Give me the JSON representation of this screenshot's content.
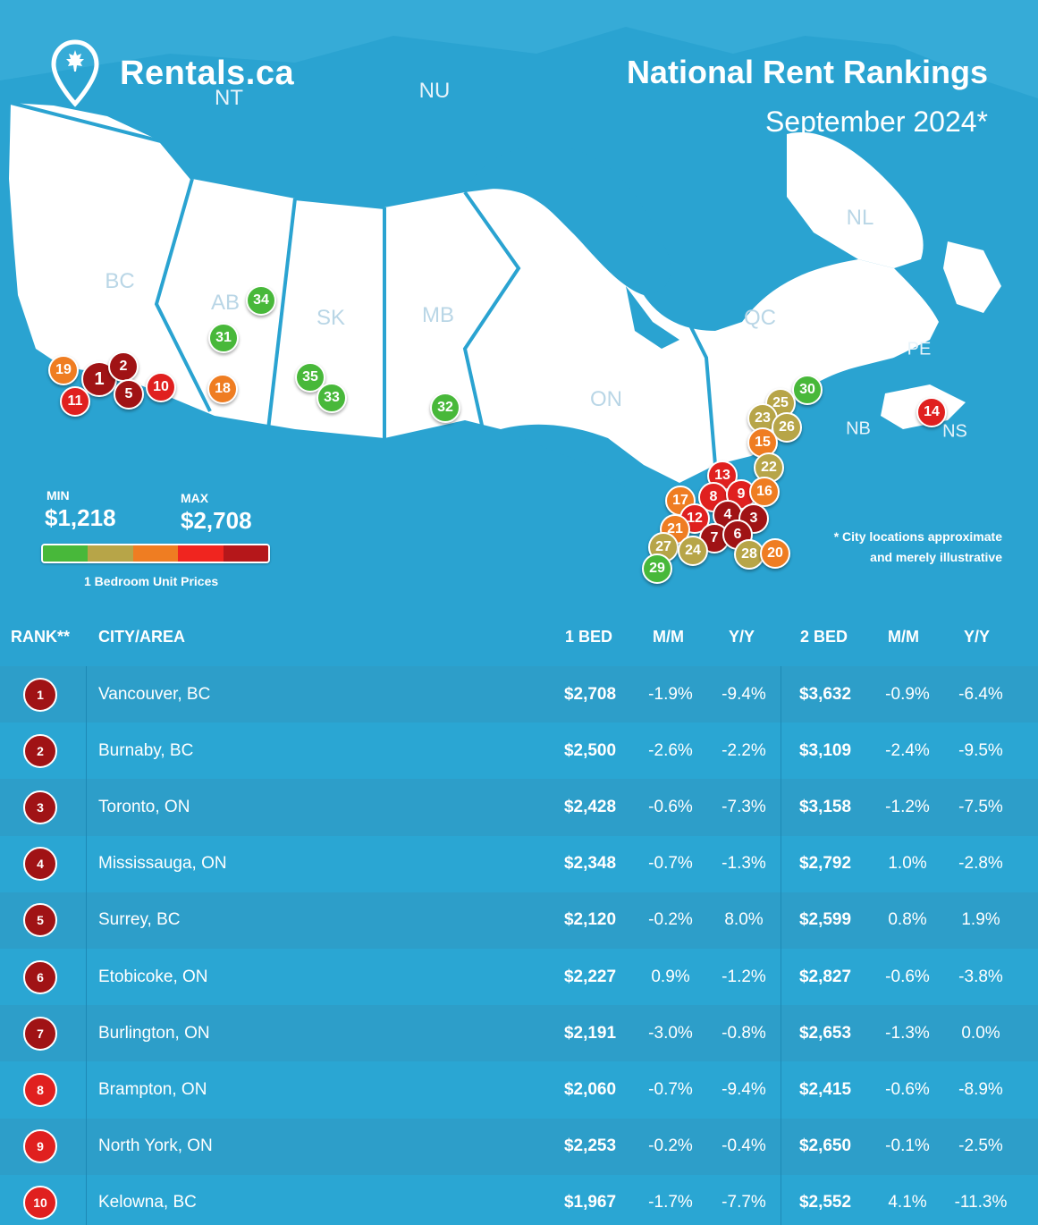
{
  "brand": {
    "name": "Rentals.ca"
  },
  "title": "National Rent Rankings",
  "subtitle": "September 2024*",
  "provinces": [
    "NT",
    "NU",
    "BC",
    "AB",
    "SK",
    "MB",
    "ON",
    "QC",
    "NL",
    "PE",
    "NB",
    "NS"
  ],
  "legend": {
    "min_label": "MIN",
    "min_value": "$1,218",
    "max_label": "MAX",
    "max_value": "$2,708",
    "caption": "1 Bedroom Unit Prices",
    "colors": [
      "#48b83a",
      "#b7a548",
      "#ef7d22",
      "#f0251f",
      "#b5171a"
    ]
  },
  "footnote": [
    "* City locations approximate",
    "and merely illustrative"
  ],
  "pins": [
    {
      "n": "1",
      "color": "#a01315",
      "big": true
    },
    {
      "n": "2",
      "color": "#a01315"
    },
    {
      "n": "5",
      "color": "#a01315"
    },
    {
      "n": "10",
      "color": "#e0201f"
    },
    {
      "n": "11",
      "color": "#e0201f"
    },
    {
      "n": "19",
      "color": "#ef7d22"
    },
    {
      "n": "34",
      "color": "#48b83a"
    },
    {
      "n": "31",
      "color": "#48b83a"
    },
    {
      "n": "18",
      "color": "#ef7d22"
    },
    {
      "n": "35",
      "color": "#48b83a"
    },
    {
      "n": "33",
      "color": "#48b83a"
    },
    {
      "n": "32",
      "color": "#48b83a"
    },
    {
      "n": "30",
      "color": "#48b83a"
    },
    {
      "n": "25",
      "color": "#b7a548"
    },
    {
      "n": "23",
      "color": "#b7a548"
    },
    {
      "n": "26",
      "color": "#b7a548"
    },
    {
      "n": "15",
      "color": "#ef7d22"
    },
    {
      "n": "22",
      "color": "#b7a548"
    },
    {
      "n": "14",
      "color": "#e0201f"
    },
    {
      "n": "13",
      "color": "#e0201f"
    },
    {
      "n": "17",
      "color": "#ef7d22"
    },
    {
      "n": "8",
      "color": "#e0201f"
    },
    {
      "n": "9",
      "color": "#e0201f"
    },
    {
      "n": "16",
      "color": "#ef7d22"
    },
    {
      "n": "12",
      "color": "#e0201f"
    },
    {
      "n": "4",
      "color": "#a01315"
    },
    {
      "n": "3",
      "color": "#a01315"
    },
    {
      "n": "21",
      "color": "#ef7d22"
    },
    {
      "n": "7",
      "color": "#a01315"
    },
    {
      "n": "6",
      "color": "#a01315"
    },
    {
      "n": "27",
      "color": "#b7a548"
    },
    {
      "n": "24",
      "color": "#b7a548"
    },
    {
      "n": "28",
      "color": "#b7a548"
    },
    {
      "n": "20",
      "color": "#ef7d22"
    },
    {
      "n": "29",
      "color": "#48b83a"
    }
  ],
  "table": {
    "headers": [
      "RANK**",
      "CITY/AREA",
      "1 BED",
      "M/M",
      "Y/Y",
      "2 BED",
      "M/M",
      "Y/Y"
    ],
    "rows": [
      {
        "rank": "1",
        "badge": "#a01315",
        "city": "Vancouver, BC",
        "bed1": "$2,708",
        "mm1": "-1.9%",
        "yy1": "-9.4%",
        "bed2": "$3,632",
        "mm2": "-0.9%",
        "yy2": "-6.4%"
      },
      {
        "rank": "2",
        "badge": "#a01315",
        "city": "Burnaby, BC",
        "bed1": "$2,500",
        "mm1": "-2.6%",
        "yy1": "-2.2%",
        "bed2": "$3,109",
        "mm2": "-2.4%",
        "yy2": "-9.5%"
      },
      {
        "rank": "3",
        "badge": "#a01315",
        "city": "Toronto, ON",
        "bed1": "$2,428",
        "mm1": "-0.6%",
        "yy1": "-7.3%",
        "bed2": "$3,158",
        "mm2": "-1.2%",
        "yy2": "-7.5%"
      },
      {
        "rank": "4",
        "badge": "#a01315",
        "city": "Mississauga, ON",
        "bed1": "$2,348",
        "mm1": "-0.7%",
        "yy1": "-1.3%",
        "bed2": "$2,792",
        "mm2": "1.0%",
        "yy2": "-2.8%"
      },
      {
        "rank": "5",
        "badge": "#a01315",
        "city": "Surrey, BC",
        "bed1": "$2,120",
        "mm1": "-0.2%",
        "yy1": "8.0%",
        "bed2": "$2,599",
        "mm2": "0.8%",
        "yy2": "1.9%"
      },
      {
        "rank": "6",
        "badge": "#a01315",
        "city": "Etobicoke, ON",
        "bed1": "$2,227",
        "mm1": "0.9%",
        "yy1": "-1.2%",
        "bed2": "$2,827",
        "mm2": "-0.6%",
        "yy2": "-3.8%"
      },
      {
        "rank": "7",
        "badge": "#a01315",
        "city": "Burlington, ON",
        "bed1": "$2,191",
        "mm1": "-3.0%",
        "yy1": "-0.8%",
        "bed2": "$2,653",
        "mm2": "-1.3%",
        "yy2": "0.0%"
      },
      {
        "rank": "8",
        "badge": "#e0201f",
        "city": "Brampton, ON",
        "bed1": "$2,060",
        "mm1": "-0.7%",
        "yy1": "-9.4%",
        "bed2": "$2,415",
        "mm2": "-0.6%",
        "yy2": "-8.9%"
      },
      {
        "rank": "9",
        "badge": "#e0201f",
        "city": "North York, ON",
        "bed1": "$2,253",
        "mm1": "-0.2%",
        "yy1": "-0.4%",
        "bed2": "$2,650",
        "mm2": "-0.1%",
        "yy2": "-2.5%"
      },
      {
        "rank": "10",
        "badge": "#e0201f",
        "city": "Kelowna, BC",
        "bed1": "$1,967",
        "mm1": "-1.7%",
        "yy1": "-7.7%",
        "bed2": "$2,552",
        "mm2": "4.1%",
        "yy2": "-11.3%"
      }
    ]
  }
}
